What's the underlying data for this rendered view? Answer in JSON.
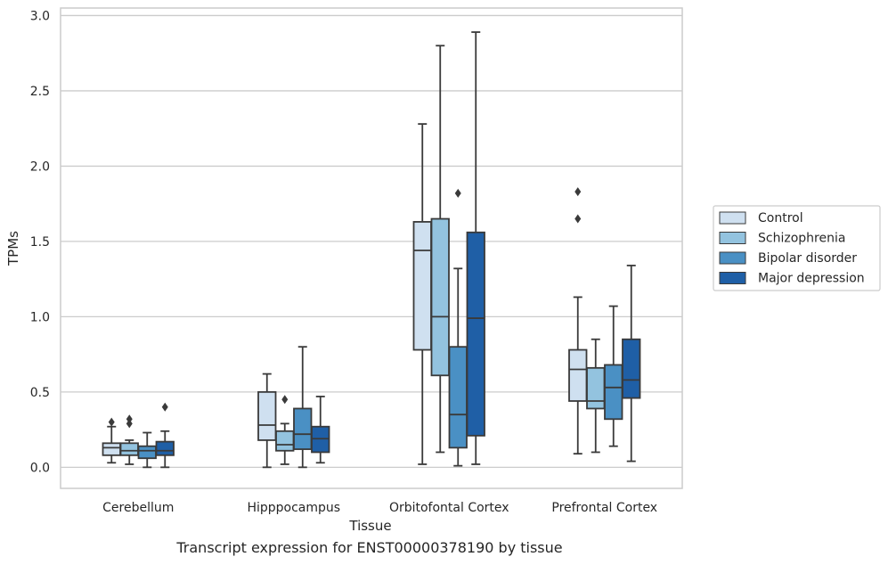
{
  "chart_data": {
    "type": "box",
    "xlabel": "Tissue",
    "ylabel": "TPMs",
    "caption": "Transcript expression for ENST00000378190 by tissue",
    "ylim": [
      -0.14,
      3.05
    ],
    "yticks": [
      "0.0",
      "0.5",
      "1.0",
      "1.5",
      "2.0",
      "2.5",
      "3.0"
    ],
    "grid": "horizontal",
    "legend_position": "right",
    "categories": [
      "Cerebellum",
      "Hipppocampus",
      "Orbitofontal Cortex",
      "Prefrontal Cortex"
    ],
    "series": [
      {
        "name": "Control",
        "color": "#cfe0f0",
        "boxes": [
          {
            "whisker_low": 0.03,
            "q1": 0.08,
            "median": 0.13,
            "q3": 0.16,
            "whisker_high": 0.27,
            "outliers": [
              0.3
            ]
          },
          {
            "whisker_low": 0.0,
            "q1": 0.18,
            "median": 0.28,
            "q3": 0.5,
            "whisker_high": 0.62,
            "outliers": []
          },
          {
            "whisker_low": 0.02,
            "q1": 0.78,
            "median": 1.44,
            "q3": 1.63,
            "whisker_high": 2.28,
            "outliers": []
          },
          {
            "whisker_low": 0.09,
            "q1": 0.44,
            "median": 0.65,
            "q3": 0.78,
            "whisker_high": 1.13,
            "outliers": [
              1.65,
              1.83
            ]
          }
        ]
      },
      {
        "name": "Schizophrenia",
        "color": "#93c3df",
        "boxes": [
          {
            "whisker_low": 0.02,
            "q1": 0.08,
            "median": 0.11,
            "q3": 0.16,
            "whisker_high": 0.18,
            "outliers": [
              0.29,
              0.32
            ]
          },
          {
            "whisker_low": 0.02,
            "q1": 0.11,
            "median": 0.15,
            "q3": 0.24,
            "whisker_high": 0.29,
            "outliers": [
              0.45
            ]
          },
          {
            "whisker_low": 0.1,
            "q1": 0.61,
            "median": 1.0,
            "q3": 1.65,
            "whisker_high": 2.8,
            "outliers": []
          },
          {
            "whisker_low": 0.1,
            "q1": 0.39,
            "median": 0.44,
            "q3": 0.66,
            "whisker_high": 0.85,
            "outliers": []
          }
        ]
      },
      {
        "name": "Bipolar disorder",
        "color": "#4a90c4",
        "boxes": [
          {
            "whisker_low": 0.0,
            "q1": 0.06,
            "median": 0.11,
            "q3": 0.14,
            "whisker_high": 0.23,
            "outliers": []
          },
          {
            "whisker_low": 0.0,
            "q1": 0.12,
            "median": 0.22,
            "q3": 0.39,
            "whisker_high": 0.8,
            "outliers": []
          },
          {
            "whisker_low": 0.01,
            "q1": 0.13,
            "median": 0.35,
            "q3": 0.8,
            "whisker_high": 1.32,
            "outliers": [
              1.82
            ]
          },
          {
            "whisker_low": 0.14,
            "q1": 0.32,
            "median": 0.53,
            "q3": 0.68,
            "whisker_high": 1.07,
            "outliers": []
          }
        ]
      },
      {
        "name": "Major depression",
        "color": "#1f5fa6",
        "boxes": [
          {
            "whisker_low": 0.0,
            "q1": 0.08,
            "median": 0.11,
            "q3": 0.17,
            "whisker_high": 0.24,
            "outliers": [
              0.4
            ]
          },
          {
            "whisker_low": 0.03,
            "q1": 0.1,
            "median": 0.19,
            "q3": 0.27,
            "whisker_high": 0.47,
            "outliers": []
          },
          {
            "whisker_low": 0.02,
            "q1": 0.21,
            "median": 0.99,
            "q3": 1.56,
            "whisker_high": 2.89,
            "outliers": []
          },
          {
            "whisker_low": 0.04,
            "q1": 0.46,
            "median": 0.58,
            "q3": 0.85,
            "whisker_high": 1.34,
            "outliers": []
          }
        ]
      }
    ]
  }
}
